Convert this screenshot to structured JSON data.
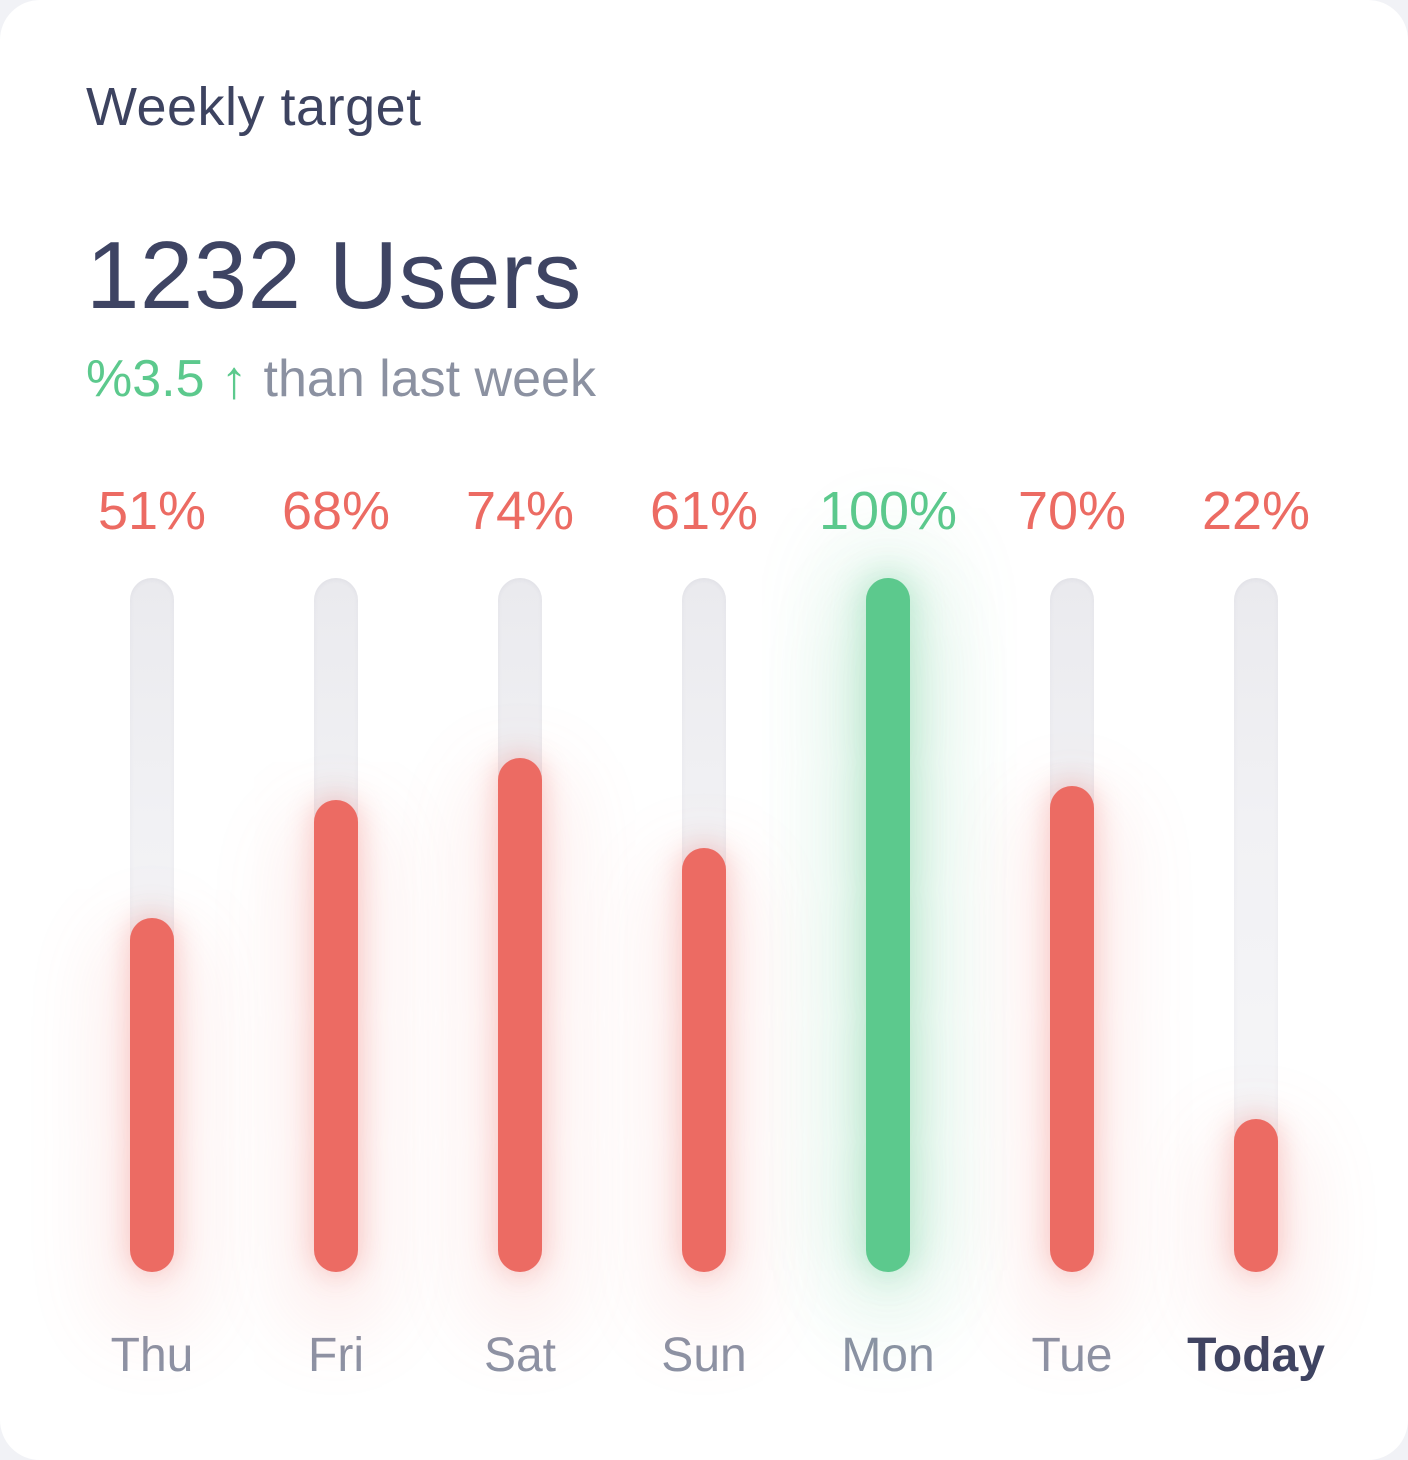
{
  "card": {
    "title": "Weekly target",
    "stat_value": "1232 Users",
    "delta": {
      "value": "%3.5",
      "arrow": "↑",
      "direction": "up",
      "caption": "than last week"
    }
  },
  "chart_data": {
    "type": "bar",
    "orientation": "vertical",
    "title": "Weekly target",
    "categories": [
      "Thu",
      "Fri",
      "Sat",
      "Sun",
      "Mon",
      "Tue",
      "Today"
    ],
    "values": [
      51,
      68,
      74,
      61,
      100,
      70,
      22
    ],
    "value_labels": [
      "51%",
      "68%",
      "74%",
      "61%",
      "100%",
      "70%",
      "22%"
    ],
    "unit": "%",
    "ylim": [
      0,
      100
    ],
    "complete_value": 100,
    "emphasized_category": "Today",
    "grid": false,
    "legend": false,
    "colors": {
      "bar_incomplete": "#EC6B63",
      "bar_complete": "#5CC98D",
      "track": "#F0F0F3",
      "value_label_incomplete": "#EC6B63",
      "value_label_complete": "#5CC98D",
      "category_label": "#8C92A4",
      "category_label_emphasized": "#3E4462"
    }
  },
  "colors": {
    "card_bg": "#FFFFFF",
    "title": "#3D4360",
    "stat": "#3E4463",
    "delta_positive": "#5CC98D",
    "delta_caption": "#8B91A1"
  }
}
